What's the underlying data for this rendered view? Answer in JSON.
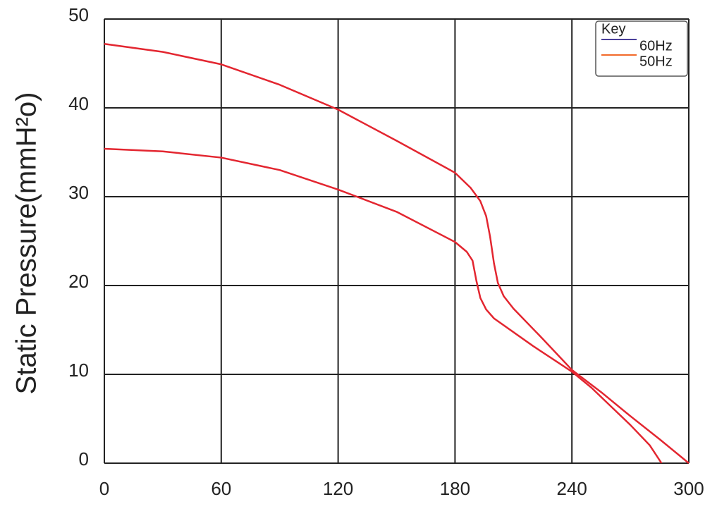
{
  "chart_data": {
    "type": "line",
    "y_label": "Static Pressure(mmH²o)",
    "legend_title": "Key",
    "xlim": [
      0,
      300
    ],
    "xticks": [
      0,
      60,
      120,
      180,
      240,
      300
    ],
    "ylim": [
      0,
      50
    ],
    "yticks": [
      0,
      10,
      20,
      30,
      40,
      50
    ],
    "grid": true,
    "legend_position": "upper right",
    "series": [
      {
        "name": "60Hz",
        "color": "#e32630",
        "legend_color": "#4a3f9a",
        "x": [
          0,
          30,
          60,
          90,
          120,
          150,
          180,
          188,
          193,
          196,
          198,
          200,
          202,
          205,
          210,
          225,
          240,
          255,
          270,
          285,
          300
        ],
        "values": [
          47.2,
          46.3,
          44.9,
          42.6,
          39.8,
          36.3,
          32.7,
          31.0,
          29.5,
          27.8,
          25.5,
          22.5,
          20.3,
          18.8,
          17.4,
          14.0,
          10.5,
          8.0,
          5.3,
          2.7,
          0
        ]
      },
      {
        "name": "50Hz",
        "color": "#e32630",
        "legend_color": "#f26a2a",
        "x": [
          0,
          30,
          60,
          90,
          120,
          150,
          180,
          186,
          189,
          191,
          193,
          196,
          200,
          220,
          240,
          250,
          260,
          270,
          280,
          286
        ],
        "values": [
          35.4,
          35.1,
          34.4,
          33.0,
          30.8,
          28.3,
          24.9,
          23.8,
          22.8,
          20.5,
          18.6,
          17.3,
          16.3,
          13.2,
          10.3,
          8.5,
          6.4,
          4.3,
          2.0,
          0
        ]
      }
    ]
  }
}
